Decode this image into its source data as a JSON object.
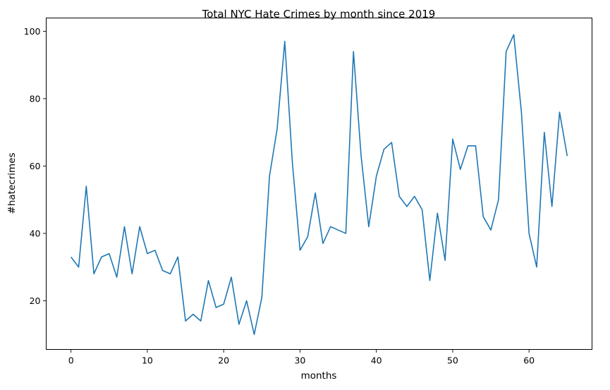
{
  "chart_data": {
    "type": "line",
    "title": "Total NYC Hate Crimes by month since 2019",
    "xlabel": "months",
    "ylabel": "#hatecrimes",
    "xlim": [
      -3.25,
      68.25
    ],
    "ylim": [
      5.55,
      103.95
    ],
    "xticks": [
      0,
      10,
      20,
      30,
      40,
      50,
      60
    ],
    "yticks": [
      20,
      40,
      60,
      80,
      100
    ],
    "grid": false,
    "line_color": "#1f77b4",
    "series": [
      {
        "x": [
          0,
          1,
          2,
          3,
          4,
          5,
          6,
          7,
          8,
          9,
          10,
          11,
          12,
          13,
          14,
          15,
          16,
          17,
          18,
          19,
          20,
          21,
          22,
          23,
          24,
          25,
          26,
          27,
          28,
          29,
          30,
          31,
          32,
          33,
          34,
          35,
          36,
          37,
          38,
          39,
          40,
          41,
          42,
          43,
          44,
          45,
          46,
          47,
          48,
          49,
          50,
          51,
          52,
          53,
          54,
          55,
          56,
          57,
          58,
          59,
          60,
          61,
          62,
          63,
          64,
          65
        ],
        "values": [
          33,
          30,
          54,
          28,
          33,
          34,
          27,
          42,
          28,
          42,
          34,
          35,
          29,
          28,
          33,
          14,
          16,
          14,
          26,
          18,
          19,
          27,
          13,
          20,
          10,
          21,
          57,
          71,
          97,
          61,
          35,
          39,
          52,
          37,
          42,
          41,
          40,
          94,
          63,
          42,
          57,
          65,
          67,
          51,
          48,
          51,
          47,
          26,
          46,
          32,
          68,
          59,
          66,
          66,
          45,
          41,
          50,
          94,
          99,
          76,
          40,
          30,
          70,
          48,
          76,
          63
        ]
      }
    ]
  }
}
